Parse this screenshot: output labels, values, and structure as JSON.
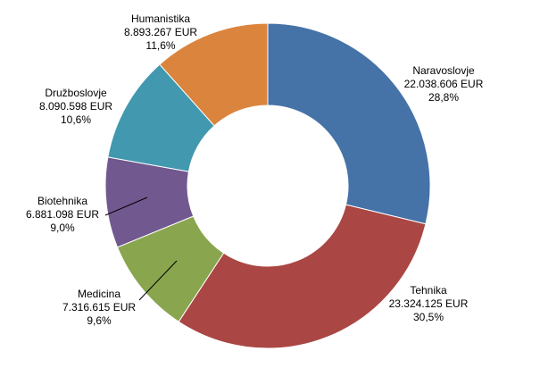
{
  "chart_data": {
    "type": "pie",
    "subtype": "doughnut",
    "title": "",
    "legend": "none",
    "start_angle_deg": 0,
    "direction": "clockwise",
    "slices": [
      {
        "name": "Naravoslovje",
        "amount": "22.038.606 EUR",
        "percent_label": "28,8%",
        "value": 28.8,
        "color": "#4572A7"
      },
      {
        "name": "Tehnika",
        "amount": "23.324.125 EUR",
        "percent_label": "30,5%",
        "value": 30.5,
        "color": "#AA4643"
      },
      {
        "name": "Medicina",
        "amount": "7.316.615 EUR",
        "percent_label": "9,6%",
        "value": 9.6,
        "color": "#89A54E"
      },
      {
        "name": "Biotehnika",
        "amount": "6.881.098 EUR",
        "percent_label": "9,0%",
        "value": 9.0,
        "color": "#71588F"
      },
      {
        "name": "Družboslovje",
        "amount": "8.090.598 EUR",
        "percent_label": "10,6%",
        "value": 10.6,
        "color": "#4198AF"
      },
      {
        "name": "Humanistika",
        "amount": "8.893.267 EUR",
        "percent_label": "11,6%",
        "value": 11.6,
        "color": "#DB843D"
      }
    ]
  }
}
